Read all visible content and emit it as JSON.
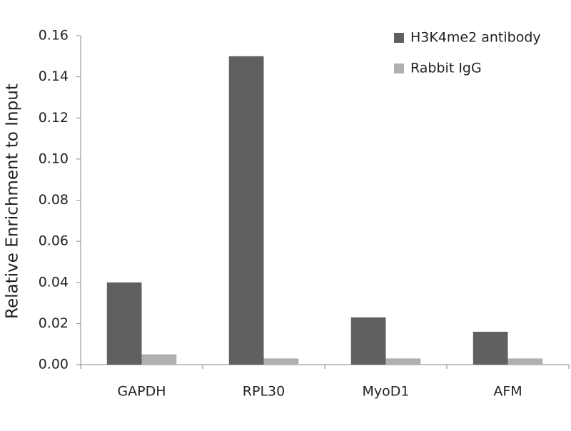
{
  "chart_data": {
    "type": "bar",
    "y_label": "Relative Enrichment to Input",
    "categories": [
      "GAPDH",
      "RPL30",
      "MyoD1",
      "AFM"
    ],
    "series": [
      {
        "name": "H3K4me2 antibody",
        "color": "#606060",
        "values": [
          0.04,
          0.15,
          0.023,
          0.016
        ]
      },
      {
        "name": "Rabbit IgG",
        "color": "#b0b0b0",
        "values": [
          0.005,
          0.003,
          0.003,
          0.003
        ]
      }
    ],
    "ylim": [
      0,
      0.16
    ],
    "yticks": [
      {
        "value": 0,
        "label": "0.00"
      },
      0.02,
      0.04,
      0.06,
      0.08,
      {
        "value": 0.1,
        "label": "0.10"
      },
      0.12,
      0.14,
      0.16
    ],
    "grid": false,
    "legend": "top-right"
  }
}
